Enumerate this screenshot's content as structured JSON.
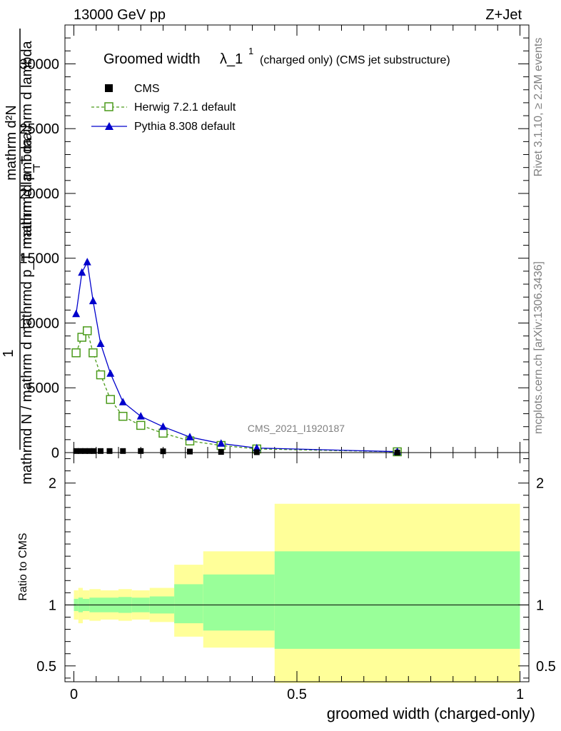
{
  "header": {
    "left_label": "13000 GeV pp",
    "right_label": "Z+Jet"
  },
  "side_labels": {
    "rivet": "Rivet 3.1.10, ≥ 2.2M events",
    "mcplots": "mcplots.cern.ch [arXiv:1306.3436]"
  },
  "watermark": "CMS_2021_I1920187",
  "ratio_ylabel": "Ratio to CMS",
  "colors": {
    "herwig": "#4a9a1a",
    "pythia": "#0000cc",
    "band_inner": "#99ff99",
    "band_outer": "#ffff99"
  },
  "chart_data": [
    {
      "type": "line",
      "title_main": "Groomed width",
      "title_symbol": "λ_1",
      "title_superscript": "1",
      "title_suffix": "(charged only) (CMS jet substructure)",
      "ylabel_numerator": "mathrm d²N",
      "ylabel_line2": "mathrm d p_T mathrm d lambda",
      "ylabel_sub_T": "T",
      "ylabel_num": "1",
      "ylabel_den": "mathrmd N / mathrm d mathrmd p_T mathrm d lambda",
      "ylim": [
        0,
        33000
      ],
      "yticks": [
        0,
        5000,
        10000,
        15000,
        20000,
        25000,
        30000
      ],
      "ytick_labels": [
        "0",
        "5000",
        "10000",
        "15000",
        "20000",
        "25000",
        "30000"
      ],
      "xlim": [
        -0.02,
        1.02
      ],
      "series": [
        {
          "name": "CMS",
          "marker": "square-filled",
          "x": [
            0.005,
            0.015,
            0.025,
            0.035,
            0.045,
            0.06,
            0.08,
            0.11,
            0.15,
            0.2,
            0.26,
            0.33,
            0.41,
            0.725
          ],
          "values": [
            120,
            120,
            120,
            120,
            120,
            120,
            120,
            120,
            120,
            100,
            80,
            50,
            30,
            5
          ]
        },
        {
          "name": "Herwig 7.2.1 default",
          "marker": "square-open",
          "x": [
            0.005,
            0.018,
            0.03,
            0.043,
            0.06,
            0.082,
            0.11,
            0.15,
            0.2,
            0.26,
            0.33,
            0.41,
            0.725
          ],
          "values": [
            7700,
            8900,
            9400,
            7700,
            6000,
            4100,
            2800,
            2100,
            1500,
            900,
            550,
            280,
            60
          ]
        },
        {
          "name": "Pythia 8.308 default",
          "marker": "triangle-filled",
          "x": [
            0.005,
            0.018,
            0.03,
            0.043,
            0.06,
            0.082,
            0.11,
            0.15,
            0.2,
            0.26,
            0.33,
            0.41,
            0.725
          ],
          "values": [
            10700,
            13900,
            14700,
            11700,
            8400,
            6100,
            3900,
            2800,
            2000,
            1200,
            700,
            350,
            70
          ]
        }
      ]
    },
    {
      "type": "area",
      "ylabel": "Ratio to CMS",
      "xlabel": "groomed width (charged-only)",
      "ylim": [
        0.37,
        2.25
      ],
      "yticks": [
        0.5,
        1,
        2
      ],
      "ytick_labels": [
        "0.5",
        "1",
        "2"
      ],
      "xlim": [
        -0.02,
        1.02
      ],
      "xticks": [
        0,
        0.5,
        1
      ],
      "xtick_labels": [
        "0",
        "0.5",
        "1"
      ],
      "reference": 1,
      "bins": [
        {
          "x0": 0.0,
          "x1": 0.01,
          "inner": [
            0.95,
            1.05
          ],
          "outer": [
            0.88,
            1.12
          ]
        },
        {
          "x0": 0.01,
          "x1": 0.02,
          "inner": [
            0.94,
            1.06
          ],
          "outer": [
            0.85,
            1.14
          ]
        },
        {
          "x0": 0.02,
          "x1": 0.035,
          "inner": [
            0.95,
            1.05
          ],
          "outer": [
            0.88,
            1.12
          ]
        },
        {
          "x0": 0.035,
          "x1": 0.06,
          "inner": [
            0.94,
            1.06
          ],
          "outer": [
            0.87,
            1.13
          ]
        },
        {
          "x0": 0.06,
          "x1": 0.1,
          "inner": [
            0.94,
            1.06
          ],
          "outer": [
            0.88,
            1.12
          ]
        },
        {
          "x0": 0.1,
          "x1": 0.13,
          "inner": [
            0.935,
            1.065
          ],
          "outer": [
            0.87,
            1.13
          ]
        },
        {
          "x0": 0.13,
          "x1": 0.17,
          "inner": [
            0.94,
            1.06
          ],
          "outer": [
            0.88,
            1.12
          ]
        },
        {
          "x0": 0.17,
          "x1": 0.225,
          "inner": [
            0.93,
            1.07
          ],
          "outer": [
            0.86,
            1.14
          ]
        },
        {
          "x0": 0.225,
          "x1": 0.29,
          "inner": [
            0.85,
            1.17
          ],
          "outer": [
            0.74,
            1.33
          ]
        },
        {
          "x0": 0.29,
          "x1": 0.45,
          "inner": [
            0.79,
            1.25
          ],
          "outer": [
            0.65,
            1.44
          ]
        },
        {
          "x0": 0.45,
          "x1": 1.0,
          "inner": [
            0.64,
            1.44
          ],
          "outer": [
            0.36,
            1.83
          ]
        }
      ]
    }
  ]
}
